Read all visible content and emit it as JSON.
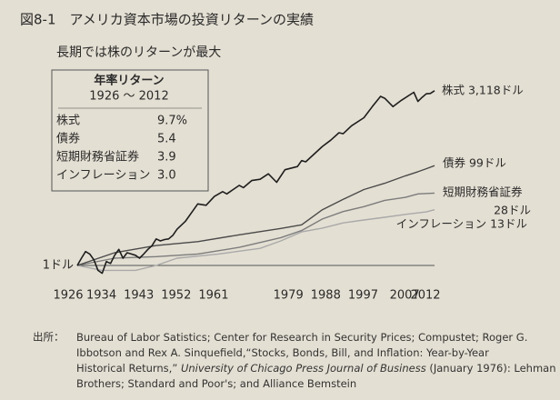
{
  "chart_data": {
    "type": "line",
    "title": "図8-1　アメリカ資本市場の投資リターンの実績",
    "subtitle": "長期では株のリターンが最大",
    "log_scale": true,
    "xlim": [
      1926,
      2012
    ],
    "xticks": [
      1926,
      1934,
      1943,
      1952,
      1961,
      1979,
      1988,
      1997,
      2007,
      2012
    ],
    "ylim": [
      0.5,
      5000
    ],
    "baseline": {
      "value": 1,
      "label": "1ドル"
    },
    "series": [
      {
        "label_lines": [
          "株式 3,118ドル"
        ],
        "color": "#1e1e1e",
        "width": 1.6,
        "x": [
          1926,
          1927,
          1928,
          1929,
          1930,
          1931,
          1932,
          1933,
          1934,
          1935,
          1936,
          1937,
          1938,
          1939,
          1940,
          1941,
          1942,
          1943,
          1944,
          1945,
          1946,
          1947,
          1948,
          1949,
          1950,
          1952,
          1954,
          1955,
          1957,
          1959,
          1961,
          1962,
          1965,
          1966,
          1968,
          1970,
          1972,
          1974,
          1976,
          1979,
          1980,
          1981,
          1985,
          1987,
          1989,
          1990,
          1992,
          1995,
          1997,
          1999,
          2000,
          2002,
          2004,
          2007,
          2008,
          2009,
          2010,
          2011,
          2012
        ],
        "values": [
          1,
          1.4,
          1.9,
          1.7,
          1.3,
          0.8,
          0.7,
          1.2,
          1.1,
          1.6,
          2.1,
          1.4,
          1.8,
          1.7,
          1.6,
          1.4,
          1.7,
          2.1,
          2.5,
          3.4,
          3.1,
          3.3,
          3.4,
          4,
          5.3,
          7.6,
          13,
          17,
          16,
          24,
          30,
          27,
          40,
          36,
          50,
          53,
          68,
          46,
          82,
          95,
          125,
          118,
          240,
          320,
          450,
          430,
          620,
          900,
          1500,
          2400,
          2200,
          1500,
          2000,
          2900,
          1900,
          2300,
          2700,
          2750,
          3118
        ]
      },
      {
        "label_lines": [
          "債券 99ドル"
        ],
        "color": "#4a4a4a",
        "width": 1.4,
        "x": [
          1926,
          1935,
          1945,
          1955,
          1965,
          1975,
          1980,
          1985,
          1990,
          1995,
          2000,
          2005,
          2008,
          2010,
          2012
        ],
        "values": [
          1,
          1.8,
          2.5,
          3,
          4.1,
          5.5,
          6.5,
          13,
          21,
          33,
          44,
          62,
          75,
          86,
          99
        ]
      },
      {
        "label_lines": [
          "短期財務省証券",
          "28ドル"
        ],
        "color": "#7c7c7c",
        "width": 1.4,
        "x": [
          1926,
          1935,
          1945,
          1955,
          1965,
          1975,
          1980,
          1985,
          1990,
          1995,
          2000,
          2005,
          2008,
          2012
        ],
        "values": [
          1,
          1.4,
          1.5,
          1.7,
          2.3,
          3.6,
          5,
          8.5,
          12,
          15,
          20,
          23,
          27,
          28
        ]
      },
      {
        "label_lines": [
          "インフレーション 13ドル"
        ],
        "color": "#a9a9a9",
        "width": 1.4,
        "x": [
          1926,
          1932,
          1940,
          1945,
          1950,
          1960,
          1970,
          1975,
          1980,
          1985,
          1990,
          1995,
          2000,
          2005,
          2010,
          2012
        ],
        "values": [
          1,
          0.8,
          0.8,
          1,
          1.4,
          1.7,
          2.2,
          3.1,
          4.7,
          5.6,
          7.1,
          8.1,
          9.2,
          10.5,
          11.8,
          13
        ]
      }
    ],
    "inset": {
      "title": "年率リターン",
      "period": "1926 〜 2012",
      "rows": [
        [
          "株式",
          "9.7%"
        ],
        [
          "債券",
          "5.4"
        ],
        [
          "短期財務省証券",
          "3.9"
        ],
        [
          "インフレーション",
          "3.0"
        ]
      ]
    },
    "source": {
      "label": "出所：",
      "lines": [
        [
          {
            "text": "Bureau of Labor Satistics; Center for Research in Security Prices; Compustet; Roger G.",
            "italic": false
          }
        ],
        [
          {
            "text": "Ibbotson and Rex A. Sinquefield,“Stocks, Bonds, Bill, and Inflation: Year-by-Year",
            "italic": false
          }
        ],
        [
          {
            "text": "Historical Returns,” ",
            "italic": false
          },
          {
            "text": "University of Chicago Press Journal of Business",
            "italic": true
          },
          {
            "text": " (January 1976): Lehman",
            "italic": false
          }
        ],
        [
          {
            "text": "Brothers; Standard and Poor's; and Alliance Bemstein",
            "italic": false
          }
        ]
      ]
    }
  }
}
